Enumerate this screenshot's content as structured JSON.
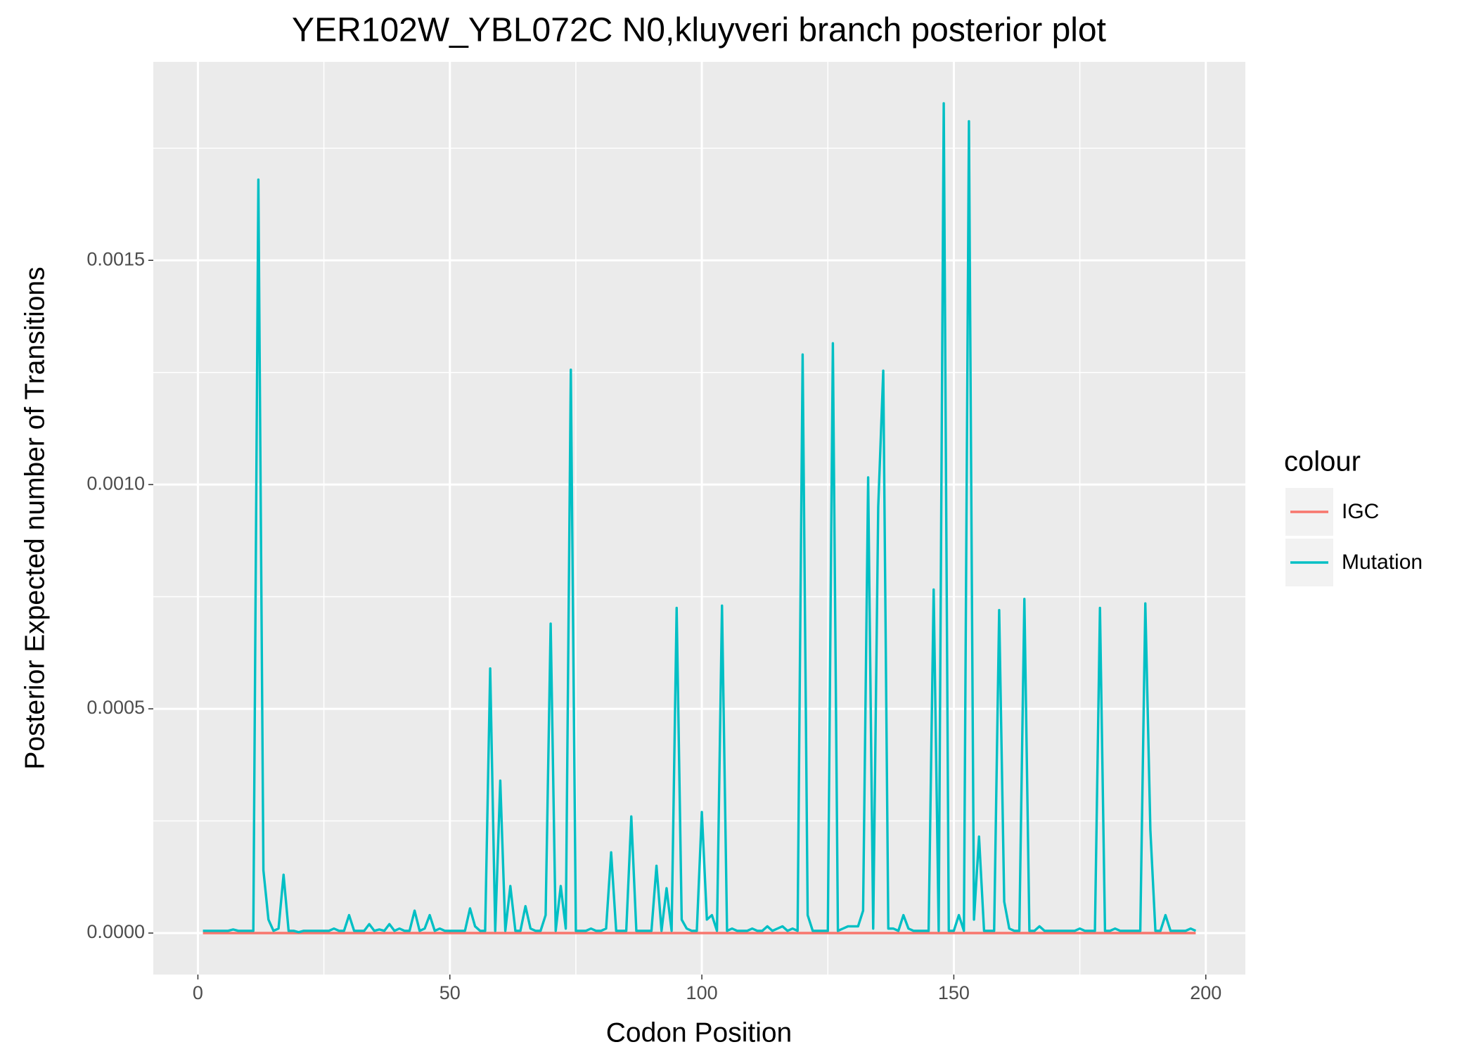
{
  "chart_data": {
    "type": "line",
    "title": "YER102W_YBL072C N0,kluyveri branch posterior plot",
    "x_label": "Codon Position",
    "y_label": "Posterior Expected number of Transitions",
    "legend_title": "colour",
    "legend_position": "right",
    "grid": true,
    "xlim": [
      -8.85,
      207.85
    ],
    "ylim": [
      -9.25e-05,
      0.0019425
    ],
    "xticks": [
      0,
      50,
      100,
      150,
      200
    ],
    "yticks": [
      {
        "value": 0,
        "label": "0.0000"
      },
      {
        "value": 0.0005,
        "label": "0.0005"
      },
      {
        "value": 0.001,
        "label": "0.0010"
      },
      {
        "value": 0.0015,
        "label": "0.0015"
      }
    ],
    "minor_xticks": [
      25,
      75,
      125,
      175
    ],
    "minor_yticks": [
      0.00025,
      0.00075,
      0.00125,
      0.00175
    ],
    "x": [
      1,
      2,
      3,
      4,
      5,
      6,
      7,
      8,
      9,
      10,
      11,
      12,
      13,
      14,
      15,
      16,
      17,
      18,
      19,
      20,
      21,
      22,
      23,
      24,
      25,
      26,
      27,
      28,
      29,
      30,
      31,
      32,
      33,
      34,
      35,
      36,
      37,
      38,
      39,
      40,
      41,
      42,
      43,
      44,
      45,
      46,
      47,
      48,
      49,
      50,
      51,
      52,
      53,
      54,
      55,
      56,
      57,
      58,
      59,
      60,
      61,
      62,
      63,
      64,
      65,
      66,
      67,
      68,
      69,
      70,
      71,
      72,
      73,
      74,
      75,
      76,
      77,
      78,
      79,
      80,
      81,
      82,
      83,
      84,
      85,
      86,
      87,
      88,
      89,
      90,
      91,
      92,
      93,
      94,
      95,
      96,
      97,
      98,
      99,
      100,
      101,
      102,
      103,
      104,
      105,
      106,
      107,
      108,
      109,
      110,
      111,
      112,
      113,
      114,
      115,
      116,
      117,
      118,
      119,
      120,
      121,
      122,
      123,
      124,
      125,
      126,
      127,
      128,
      129,
      130,
      131,
      132,
      133,
      134,
      135,
      136,
      137,
      138,
      139,
      140,
      141,
      142,
      143,
      144,
      145,
      146,
      147,
      148,
      149,
      150,
      151,
      152,
      153,
      154,
      155,
      156,
      157,
      158,
      159,
      160,
      161,
      162,
      163,
      164,
      165,
      166,
      167,
      168,
      169,
      170,
      171,
      172,
      173,
      174,
      175,
      176,
      177,
      178,
      179,
      180,
      181,
      182,
      183,
      184,
      185,
      186,
      187,
      188,
      189,
      190,
      191,
      192,
      193,
      194,
      195,
      196,
      197,
      198
    ],
    "series": [
      {
        "name": "IGC",
        "color": "#F8766D",
        "values": [
          0,
          0,
          0,
          0,
          0,
          0,
          0,
          0,
          0,
          0,
          0,
          0,
          0,
          0,
          0,
          0,
          0,
          0,
          0,
          0,
          0,
          0,
          0,
          0,
          0,
          0,
          0,
          0,
          0,
          0,
          0,
          0,
          0,
          0,
          0,
          0,
          0,
          0,
          0,
          0,
          0,
          0,
          0,
          0,
          0,
          0,
          0,
          0,
          0,
          0,
          0,
          0,
          0,
          0,
          0,
          0,
          0,
          0,
          0,
          0,
          0,
          0,
          0,
          0,
          0,
          0,
          0,
          0,
          0,
          0,
          0,
          0,
          0,
          0,
          0,
          0,
          0,
          0,
          0,
          0,
          0,
          0,
          0,
          0,
          0,
          0,
          0,
          0,
          0,
          0,
          0,
          0,
          0,
          0,
          0,
          0,
          0,
          0,
          0,
          0,
          0,
          0,
          0,
          0,
          0,
          0,
          0,
          0,
          0,
          0,
          0,
          0,
          0,
          0,
          0,
          0,
          0,
          0,
          0,
          0,
          0,
          0,
          0,
          0,
          0,
          0,
          0,
          0,
          0,
          0,
          0,
          0,
          0,
          0,
          0,
          0,
          0,
          0,
          0,
          0,
          0,
          0,
          0,
          0,
          0,
          0,
          0,
          0,
          0,
          0,
          0,
          0,
          0,
          0,
          0,
          0,
          0,
          0,
          0,
          0,
          0,
          0,
          0,
          0,
          0,
          0,
          0,
          0,
          0,
          0,
          0,
          0,
          0,
          0,
          0,
          0,
          0,
          0,
          0,
          0,
          0,
          0,
          0,
          0,
          0,
          0,
          0,
          0,
          0,
          0,
          0,
          0,
          0,
          0,
          0,
          0,
          0,
          0
        ]
      },
      {
        "name": "Mutation",
        "color": "#00BFC4",
        "values": [
          5e-06,
          5e-06,
          5e-06,
          5e-06,
          5e-06,
          5e-06,
          8e-06,
          5e-06,
          5e-06,
          5e-06,
          5e-06,
          0.00168,
          0.00014,
          3e-05,
          5e-06,
          1e-05,
          0.00013,
          5e-06,
          5e-06,
          2e-06,
          5e-06,
          5e-06,
          5e-06,
          5e-06,
          5e-06,
          5e-06,
          1e-05,
          5e-06,
          5e-06,
          4e-05,
          5e-06,
          5e-06,
          5e-06,
          2e-05,
          5e-06,
          8e-06,
          5e-06,
          2e-05,
          5e-06,
          1e-05,
          5e-06,
          5e-06,
          5e-05,
          5e-06,
          1e-05,
          4e-05,
          5e-06,
          1e-05,
          5e-06,
          5e-06,
          5e-06,
          5e-06,
          5e-06,
          5.5e-05,
          1.5e-05,
          5e-06,
          5e-06,
          0.00059,
          5e-06,
          0.00034,
          5e-06,
          0.000105,
          5e-06,
          5e-06,
          6e-05,
          1e-05,
          5e-06,
          5e-06,
          4e-05,
          0.00069,
          5e-06,
          0.000105,
          1e-05,
          0.001256,
          5e-06,
          5e-06,
          5e-06,
          1e-05,
          5e-06,
          5e-06,
          1e-05,
          0.00018,
          5e-06,
          5e-06,
          5e-06,
          0.00026,
          5e-06,
          5e-06,
          5e-06,
          5e-06,
          0.00015,
          5e-06,
          0.0001,
          5e-06,
          0.000725,
          3e-05,
          1e-05,
          5e-06,
          5e-06,
          0.00027,
          3e-05,
          4e-05,
          5e-06,
          0.00073,
          5e-06,
          1e-05,
          5e-06,
          5e-06,
          5e-06,
          1e-05,
          5e-06,
          5e-06,
          1.5e-05,
          5e-06,
          1e-05,
          1.5e-05,
          5e-06,
          1e-05,
          5e-06,
          0.00129,
          4e-05,
          5e-06,
          5e-06,
          5e-06,
          5e-06,
          0.001315,
          5e-06,
          1e-05,
          1.5e-05,
          1.5e-05,
          1.5e-05,
          5e-05,
          0.001016,
          1e-05,
          0.00095,
          0.001254,
          1e-05,
          1e-05,
          5e-06,
          4e-05,
          1e-05,
          5e-06,
          5e-06,
          5e-06,
          5e-06,
          0.000766,
          5e-06,
          0.00185,
          5e-06,
          5e-06,
          4e-05,
          5e-06,
          0.00181,
          3e-05,
          0.000215,
          5e-06,
          5e-06,
          5e-06,
          0.00072,
          7e-05,
          1e-05,
          5e-06,
          5e-06,
          0.000745,
          5e-06,
          5e-06,
          1.5e-05,
          5e-06,
          5e-06,
          5e-06,
          5e-06,
          5e-06,
          5e-06,
          5e-06,
          1e-05,
          5e-06,
          5e-06,
          5e-06,
          0.000725,
          5e-06,
          5e-06,
          1e-05,
          5e-06,
          5e-06,
          5e-06,
          5e-06,
          5e-06,
          0.000735,
          0.00023,
          5e-06,
          5e-06,
          4e-05,
          5e-06,
          5e-06,
          5e-06,
          5e-06,
          1e-05,
          5e-06
        ]
      }
    ]
  }
}
